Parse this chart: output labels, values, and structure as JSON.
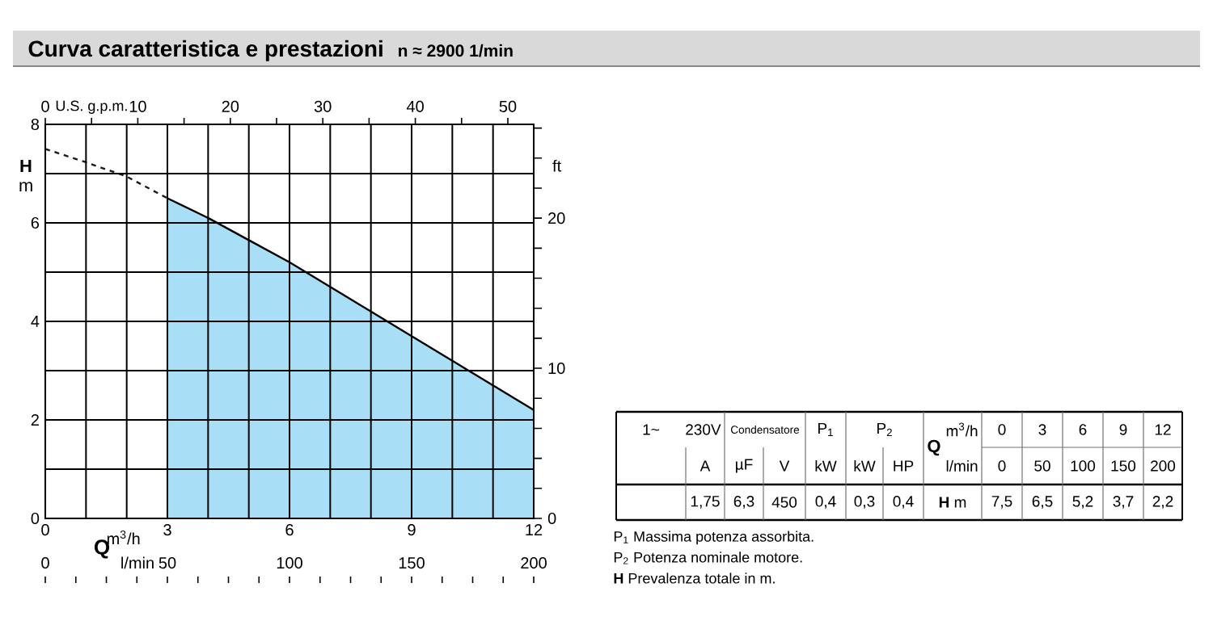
{
  "chart_data": {
    "type": "line",
    "title": "Curva caratteristica e prestazioni",
    "subtitle": "n ≈ 2900  1/min",
    "xlabel": "m$^{3}$/h",
    "ylabel": "**H** m",
    "x2label": "U.S. g.p.m.",
    "y2label": "ft",
    "xlim": [
      0,
      12
    ],
    "ylim": [
      0,
      8
    ],
    "x2lim": [
      0,
      52.8
    ],
    "y2lim": [
      0,
      26.25
    ],
    "xticks": [
      0,
      {
        "value": 1,
        "label": null
      },
      {
        "value": 2,
        "label": null
      },
      3,
      {
        "value": 4,
        "label": null
      },
      {
        "value": 5,
        "label": null
      },
      6,
      {
        "value": 7,
        "label": null
      },
      {
        "value": 8,
        "label": null
      },
      9,
      {
        "value": 10,
        "label": null
      },
      {
        "value": 11,
        "label": null
      },
      12
    ],
    "yticks": [
      0,
      {
        "value": 1,
        "label": null
      },
      2,
      {
        "value": 3,
        "label": null
      },
      4,
      {
        "value": 5,
        "label": null
      },
      6,
      {
        "value": 7,
        "label": null
      },
      8
    ],
    "x2ticks": [
      0,
      {
        "value": 5,
        "label": null
      },
      10,
      {
        "value": 15,
        "label": null
      },
      20,
      {
        "value": 25,
        "label": null
      },
      30,
      {
        "value": 35,
        "label": null
      },
      40,
      {
        "value": 45,
        "label": null
      },
      50
    ],
    "y2ticks": [
      0,
      {
        "value": 2,
        "label": null
      },
      {
        "value": 4,
        "label": null
      },
      {
        "value": 6,
        "label": null
      },
      {
        "value": 8,
        "label": null
      },
      10,
      {
        "value": 12,
        "label": null
      },
      {
        "value": 14,
        "label": null
      },
      {
        "value": 16,
        "label": null
      },
      {
        "value": 18,
        "label": null
      },
      20,
      {
        "value": 22,
        "label": null
      },
      {
        "value": 24,
        "label": null
      },
      {
        "value": 26,
        "label": null
      }
    ],
    "grid": true,
    "series": [
      {
        "line_style": "dashed",
        "color": "#1a1a1a",
        "x": [
          0,
          1,
          2,
          3
        ],
        "values": [
          7.5,
          7.23,
          6.94,
          6.5
        ]
      },
      {
        "type": "area",
        "color": "#a8def6",
        "x": [
          3,
          4,
          5,
          6,
          7,
          8,
          9,
          10,
          11,
          12
        ],
        "values": [
          6.5,
          6.1,
          5.65,
          5.2,
          4.7,
          4.2,
          3.7,
          3.2,
          2.7,
          2.2
        ]
      }
    ],
    "annotations": [
      "1~",
      "230V",
      "Condensatore",
      "P$_{1}$",
      "P$_{2}$",
      "m$^{3}$/h",
      "Q",
      "l/min",
      "0",
      "3",
      "6",
      "9",
      "12",
      "A",
      "µF",
      "V",
      "kW",
      "kW",
      "HP",
      "0",
      "50",
      "100",
      "150",
      "200",
      "1,75",
      "6,3",
      "450",
      "0,4",
      "0,3",
      "0,4",
      "**H** m",
      "7,5",
      "6,5",
      "5,2",
      "3,7",
      "2,2",
      "P$_{1}$ Massima potenza assorbita.",
      "P$_{2}$ Potenza nominale motore.",
      "**H** Prevalenza totale in m.",
      "Q",
      "l/min",
      "0",
      "50",
      "100",
      "150",
      "200"
    ]
  }
}
